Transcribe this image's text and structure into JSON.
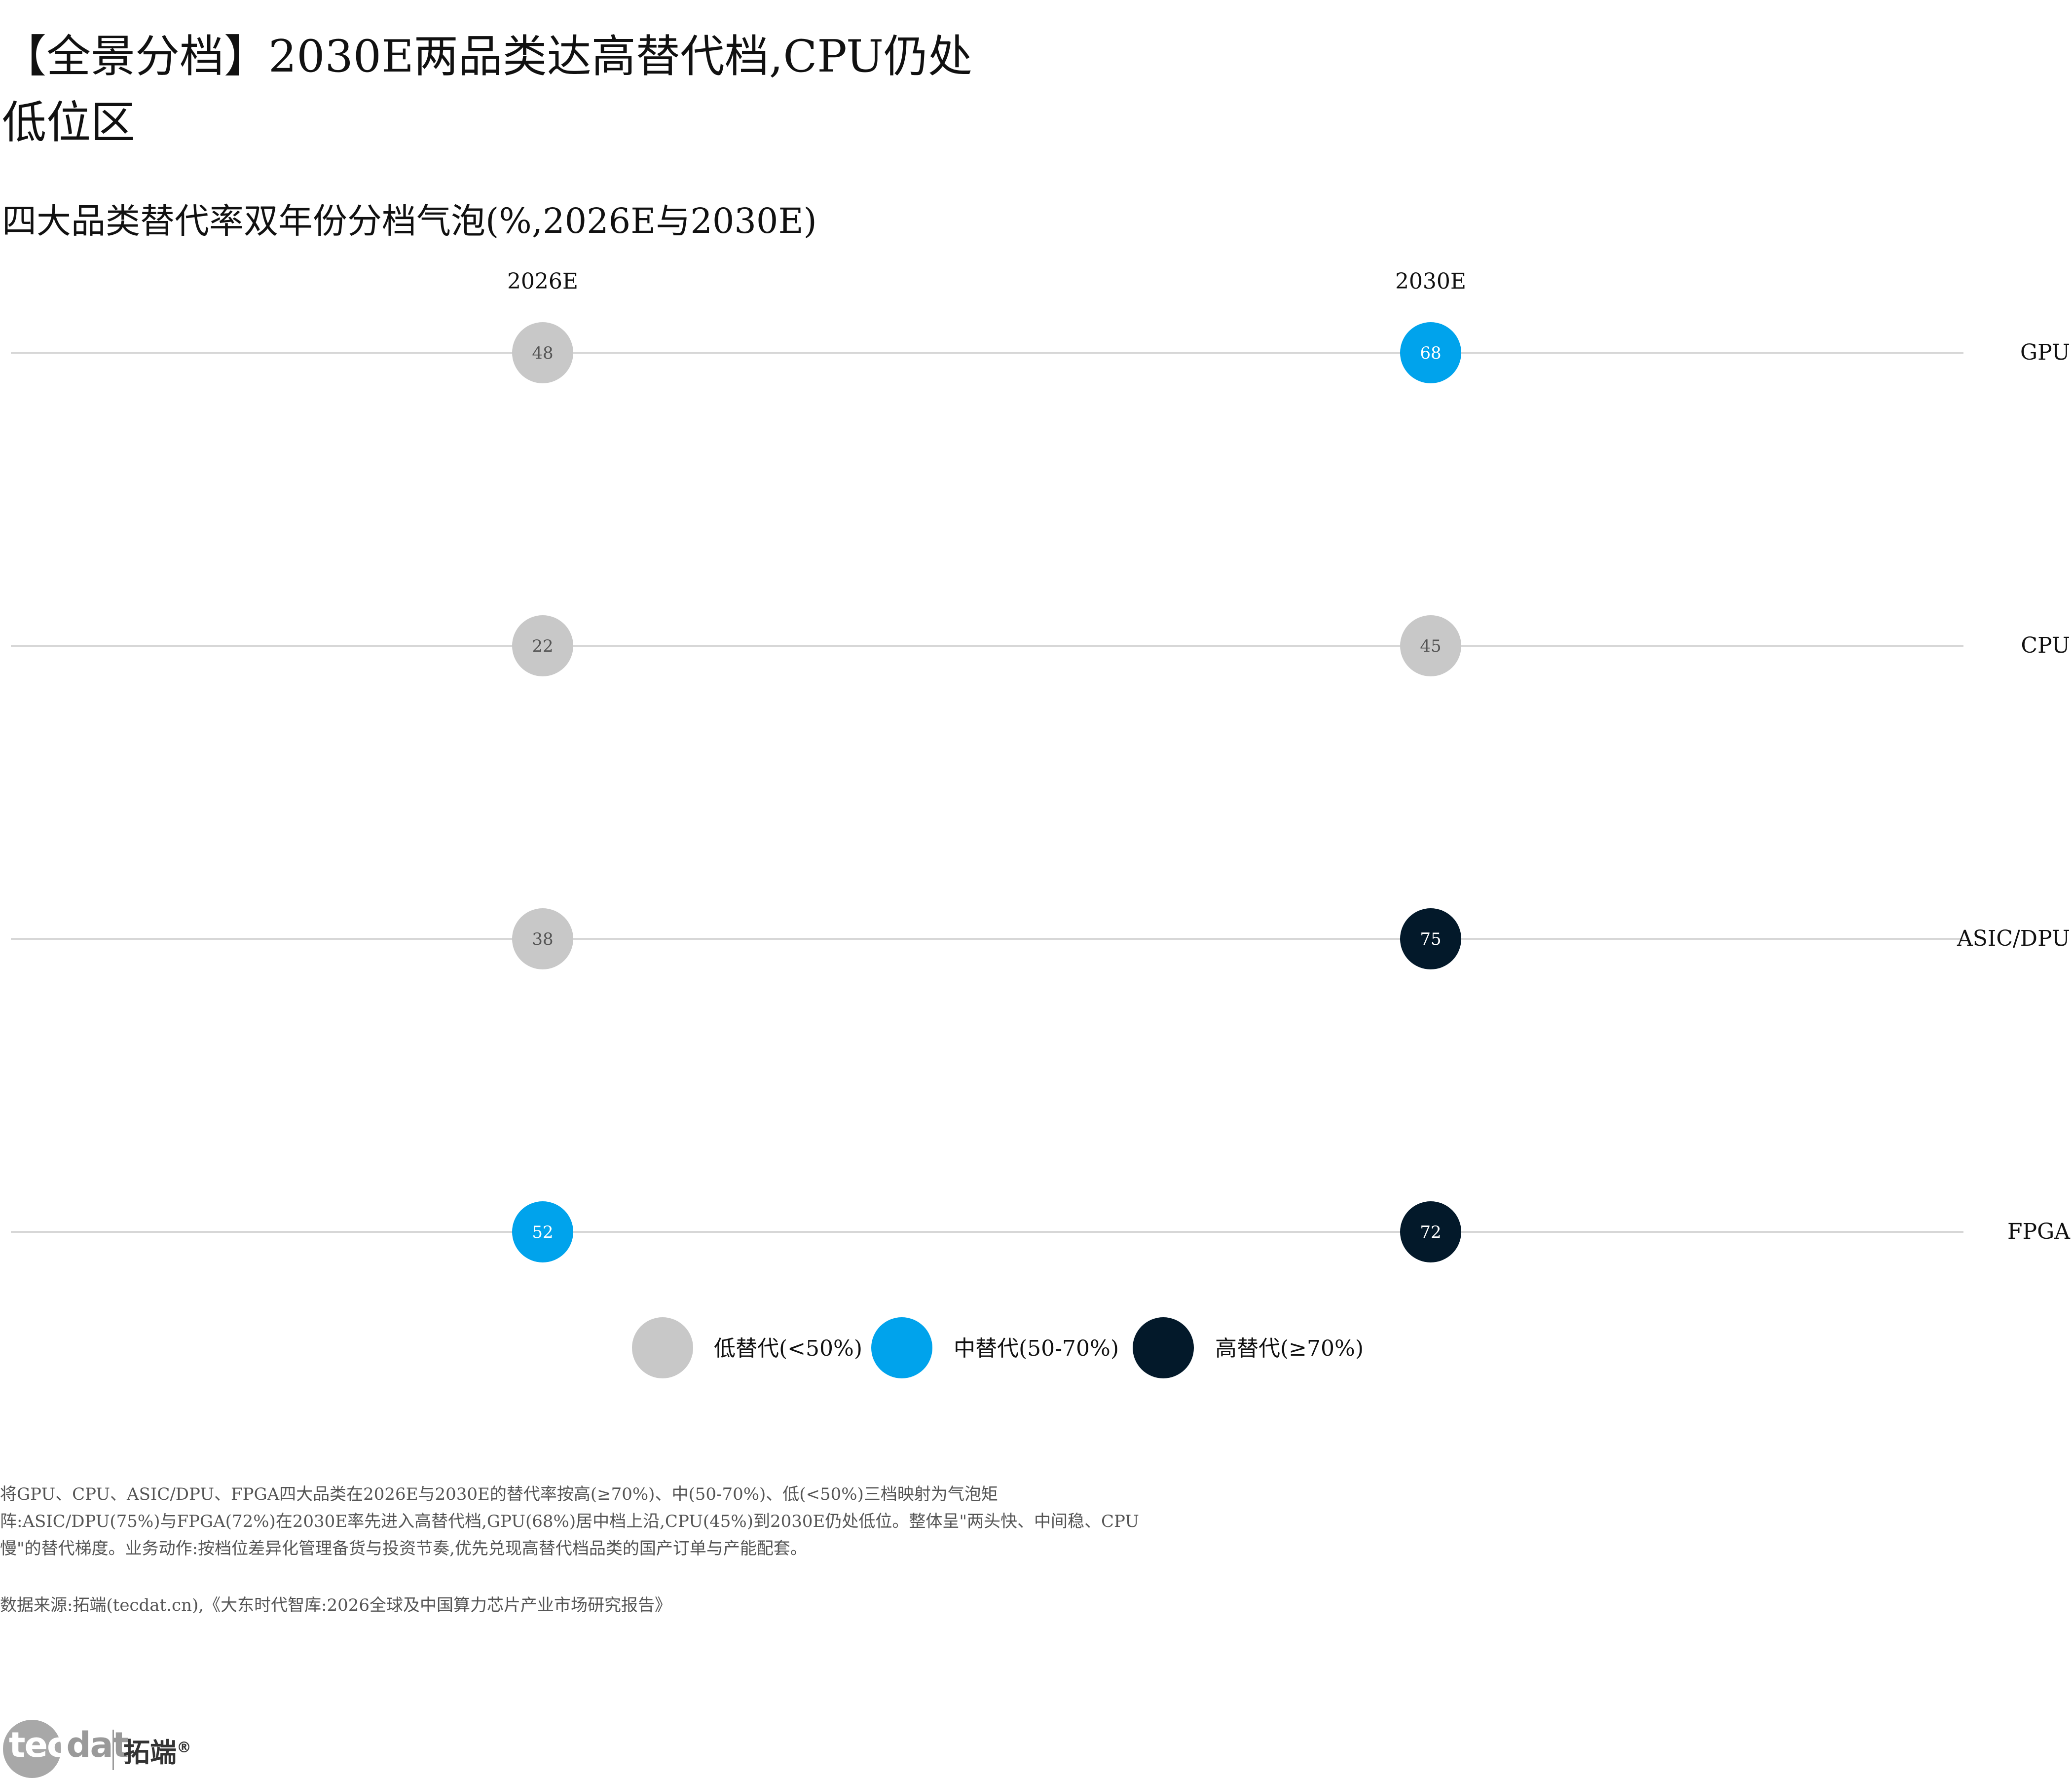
{
  "title": "【全景分档】2030E两品类达高替代档,CPU仍处低位区",
  "subtitle": "四大品类替代率双年份分档气泡(%,2026E与2030E)",
  "chart_data": {
    "type": "scatter",
    "x": [
      "2026E",
      "2030E"
    ],
    "categories": [
      "GPU",
      "CPU",
      "ASIC/DPU",
      "FPGA"
    ],
    "series": [
      {
        "name": "2026E",
        "values": [
          48,
          22,
          38,
          52
        ]
      },
      {
        "name": "2030E",
        "values": [
          68,
          45,
          75,
          72
        ]
      }
    ],
    "tiers": [
      {
        "label": "低替代(<50%)",
        "color": "#c8c8c8",
        "min": 0,
        "max": 50
      },
      {
        "label": "中替代(50-70%)",
        "color": "#00a3ec",
        "min": 50,
        "max": 70
      },
      {
        "label": "高替代(≥70%)",
        "color": "#03192a",
        "min": 70,
        "max": 100
      }
    ],
    "legend_position": "bottom-center",
    "grid": false
  },
  "note": "将GPU、CPU、ASIC/DPU、FPGA四大品类在2026E与2030E的替代率按高(≥70%)、中(50-70%)、低(<50%)三档映射为气泡矩阵:ASIC/DPU(75%)与FPGA(72%)在2030E率先进入高替代档,GPU(68%)居中档上沿,CPU(45%)到2030E仍处低位。整体呈\"两头快、中间稳、CPU慢\"的替代梯度。业务动作:按档位差异化管理备货与投资节奏,优先兑现高替代档品类的国产订单与产能配套。",
  "source": "数据来源:拓端(tecdat.cn),《大东时代智库:2026全球及中国算力芯片产业市场研究报告》",
  "logo": {
    "tec": "tec",
    "dat": "dat",
    "cn": "拓端",
    "reg": "®"
  },
  "colors": {
    "line": "#d7d7d7",
    "low_text": "#555555",
    "dark_text": "#ffffff"
  }
}
